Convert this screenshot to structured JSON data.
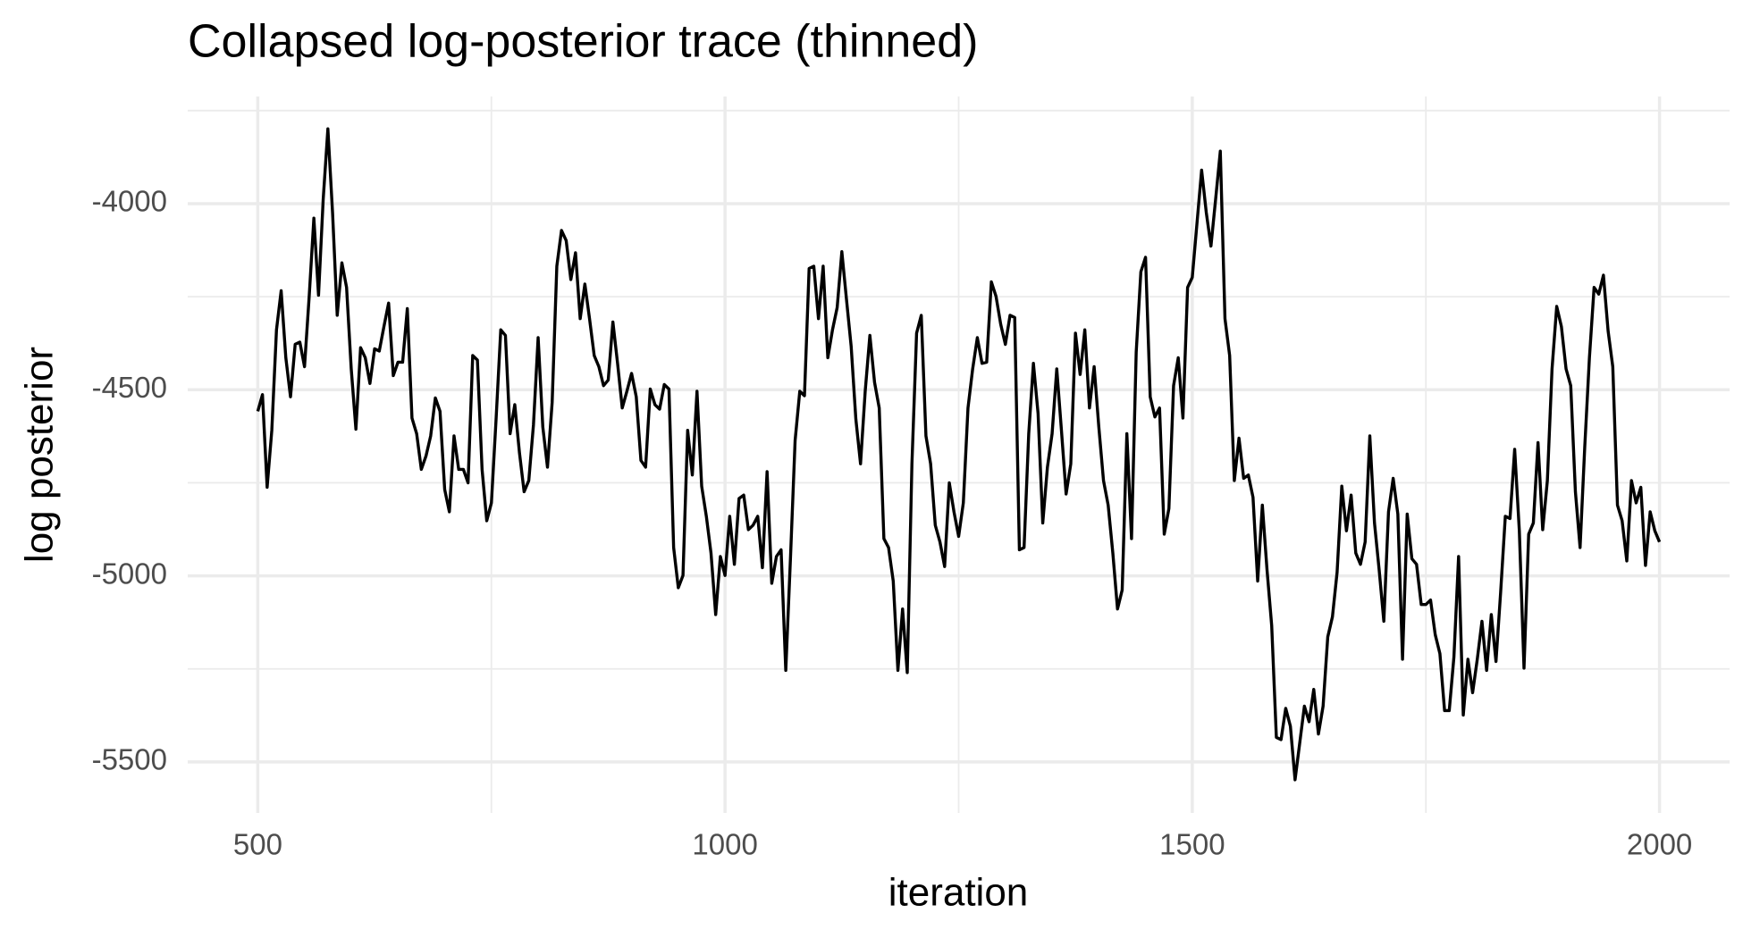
{
  "chart_data": {
    "type": "line",
    "title": "Collapsed log-posterior trace (thinned)",
    "xlabel": "iteration",
    "ylabel": "log posterior",
    "color": "#000000",
    "grid": true,
    "xlim": [
      425,
      2075
    ],
    "xticks": [
      500,
      1000,
      1500,
      2000
    ],
    "xminor": [
      750,
      1250,
      1750
    ],
    "ylim": [
      -5637,
      -3712
    ],
    "yticks": [
      -5500,
      -5000,
      -4500,
      -4000
    ],
    "yminor": [
      -5250,
      -4750,
      -4250,
      -3750
    ],
    "x": [
      500,
      505,
      510,
      515,
      520,
      525,
      530,
      535,
      540,
      545,
      550,
      555,
      560,
      565,
      570,
      575,
      580,
      585,
      590,
      595,
      600,
      605,
      610,
      615,
      620,
      625,
      630,
      635,
      640,
      645,
      650,
      655,
      660,
      665,
      670,
      675,
      680,
      685,
      690,
      695,
      700,
      705,
      710,
      715,
      720,
      725,
      730,
      735,
      740,
      745,
      750,
      755,
      760,
      765,
      770,
      775,
      780,
      785,
      790,
      795,
      800,
      805,
      810,
      815,
      820,
      825,
      830,
      835,
      840,
      845,
      850,
      855,
      860,
      865,
      870,
      875,
      880,
      885,
      890,
      895,
      900,
      905,
      910,
      915,
      920,
      925,
      930,
      935,
      940,
      945,
      950,
      955,
      960,
      965,
      970,
      975,
      980,
      985,
      990,
      995,
      1000,
      1005,
      1010,
      1015,
      1020,
      1025,
      1030,
      1035,
      1040,
      1045,
      1050,
      1055,
      1060,
      1065,
      1070,
      1075,
      1080,
      1085,
      1090,
      1095,
      1100,
      1105,
      1110,
      1115,
      1120,
      1125,
      1130,
      1135,
      1140,
      1145,
      1150,
      1155,
      1160,
      1165,
      1170,
      1175,
      1180,
      1185,
      1190,
      1195,
      1200,
      1205,
      1210,
      1215,
      1220,
      1225,
      1230,
      1235,
      1240,
      1245,
      1250,
      1255,
      1260,
      1265,
      1270,
      1275,
      1280,
      1285,
      1290,
      1295,
      1300,
      1305,
      1310,
      1315,
      1320,
      1325,
      1330,
      1335,
      1340,
      1345,
      1350,
      1355,
      1360,
      1365,
      1370,
      1375,
      1380,
      1385,
      1390,
      1395,
      1400,
      1405,
      1410,
      1415,
      1420,
      1425,
      1430,
      1435,
      1440,
      1445,
      1450,
      1455,
      1460,
      1465,
      1470,
      1475,
      1480,
      1485,
      1490,
      1495,
      1500,
      1505,
      1510,
      1515,
      1520,
      1525,
      1530,
      1535,
      1540,
      1545,
      1550,
      1555,
      1560,
      1565,
      1570,
      1575,
      1580,
      1585,
      1590,
      1595,
      1600,
      1605,
      1610,
      1615,
      1620,
      1625,
      1630,
      1635,
      1640,
      1645,
      1650,
      1655,
      1660,
      1665,
      1670,
      1675,
      1680,
      1685,
      1690,
      1695,
      1700,
      1705,
      1710,
      1715,
      1720,
      1725,
      1730,
      1735,
      1740,
      1745,
      1750,
      1755,
      1760,
      1765,
      1770,
      1775,
      1780,
      1785,
      1790,
      1795,
      1800,
      1805,
      1810,
      1815,
      1820,
      1825,
      1830,
      1835,
      1840,
      1845,
      1850,
      1855,
      1860,
      1865,
      1870,
      1875,
      1880,
      1885,
      1890,
      1895,
      1900,
      1905,
      1910,
      1915,
      1920,
      1925,
      1930,
      1935,
      1940,
      1945,
      1950,
      1955,
      1960,
      1965,
      1970,
      1975,
      1980,
      1985,
      1990,
      1995,
      2000
    ],
    "values": [
      -4558,
      -4513,
      -4762,
      -4609,
      -4339,
      -4234,
      -4414,
      -4519,
      -4378,
      -4372,
      -4438,
      -4249,
      -4039,
      -4246,
      -3988,
      -3799,
      -4024,
      -4300,
      -4159,
      -4225,
      -4444,
      -4606,
      -4387,
      -4414,
      -4483,
      -4390,
      -4396,
      -4330,
      -4267,
      -4462,
      -4426,
      -4426,
      -4282,
      -4576,
      -4618,
      -4714,
      -4678,
      -4624,
      -4522,
      -4558,
      -4768,
      -4828,
      -4624,
      -4714,
      -4714,
      -4750,
      -4408,
      -4420,
      -4714,
      -4852,
      -4804,
      -4579,
      -4339,
      -4354,
      -4618,
      -4540,
      -4669,
      -4774,
      -4744,
      -4594,
      -4360,
      -4600,
      -4708,
      -4534,
      -4168,
      -4072,
      -4099,
      -4204,
      -4132,
      -4309,
      -4216,
      -4309,
      -4408,
      -4438,
      -4489,
      -4474,
      -4318,
      -4429,
      -4549,
      -4504,
      -4456,
      -4519,
      -4690,
      -4708,
      -4498,
      -4540,
      -4552,
      -4486,
      -4498,
      -4924,
      -5032,
      -4999,
      -4609,
      -4729,
      -4504,
      -4759,
      -4840,
      -4939,
      -5104,
      -4948,
      -4999,
      -4840,
      -4969,
      -4792,
      -4783,
      -4876,
      -4864,
      -4840,
      -4978,
      -4720,
      -5020,
      -4948,
      -4930,
      -5254,
      -4954,
      -4636,
      -4504,
      -4516,
      -4174,
      -4168,
      -4309,
      -4168,
      -4414,
      -4339,
      -4279,
      -4129,
      -4258,
      -4384,
      -4579,
      -4699,
      -4504,
      -4354,
      -4480,
      -4549,
      -4900,
      -4924,
      -5014,
      -5254,
      -5089,
      -5260,
      -4699,
      -4348,
      -4300,
      -4624,
      -4699,
      -4864,
      -4909,
      -4975,
      -4750,
      -4828,
      -4894,
      -4804,
      -4549,
      -4444,
      -4360,
      -4429,
      -4426,
      -4210,
      -4249,
      -4324,
      -4378,
      -4300,
      -4306,
      -4930,
      -4924,
      -4618,
      -4429,
      -4564,
      -4858,
      -4708,
      -4618,
      -4444,
      -4609,
      -4780,
      -4699,
      -4348,
      -4459,
      -4339,
      -4549,
      -4438,
      -4600,
      -4744,
      -4810,
      -4939,
      -5089,
      -5038,
      -4618,
      -4900,
      -4399,
      -4183,
      -4144,
      -4519,
      -4573,
      -4549,
      -4888,
      -4819,
      -4489,
      -4414,
      -4576,
      -4225,
      -4198,
      -4054,
      -3910,
      -4024,
      -4114,
      -3988,
      -3859,
      -4309,
      -4408,
      -4744,
      -4630,
      -4738,
      -4729,
      -4789,
      -5014,
      -4810,
      -4984,
      -5134,
      -5434,
      -5440,
      -5356,
      -5404,
      -5548,
      -5449,
      -5350,
      -5392,
      -5305,
      -5425,
      -5350,
      -5164,
      -5110,
      -4990,
      -4759,
      -4879,
      -4783,
      -4939,
      -4969,
      -4909,
      -4624,
      -4858,
      -4984,
      -5122,
      -4828,
      -4738,
      -4834,
      -5224,
      -4834,
      -4954,
      -4969,
      -5077,
      -5077,
      -5065,
      -5158,
      -5209,
      -5362,
      -5362,
      -5218,
      -4948,
      -5374,
      -5224,
      -5314,
      -5224,
      -5122,
      -5254,
      -5104,
      -5230,
      -5044,
      -4840,
      -4846,
      -4660,
      -4879,
      -5248,
      -4888,
      -4858,
      -4642,
      -4876,
      -4744,
      -4444,
      -4276,
      -4330,
      -4444,
      -4489,
      -4774,
      -4924,
      -4654,
      -4414,
      -4225,
      -4243,
      -4192,
      -4342,
      -4438,
      -4810,
      -4852,
      -4960,
      -4744,
      -4804,
      -4762,
      -4972,
      -4828,
      -4879,
      -4909
    ]
  }
}
